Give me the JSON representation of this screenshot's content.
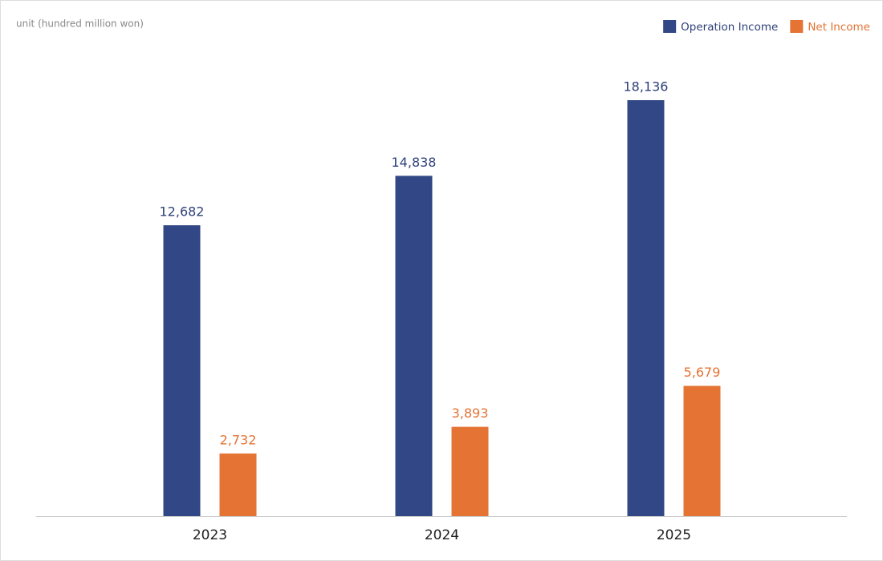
{
  "chart_data": {
    "type": "bar",
    "ylabel": "unit (hundred million won)",
    "categories": [
      "2023",
      "2024",
      "2025"
    ],
    "series": [
      {
        "name": "Operation Income",
        "color": "#324785",
        "values": [
          12682,
          14838,
          18136
        ],
        "value_labels": [
          "12,682",
          "14,838",
          "18,136"
        ]
      },
      {
        "name": "Net Income",
        "color": "#e47334",
        "values": [
          2732,
          3893,
          5679
        ],
        "value_labels": [
          "2,732",
          "3,893",
          "5,679"
        ]
      }
    ],
    "legend": "top-right"
  }
}
